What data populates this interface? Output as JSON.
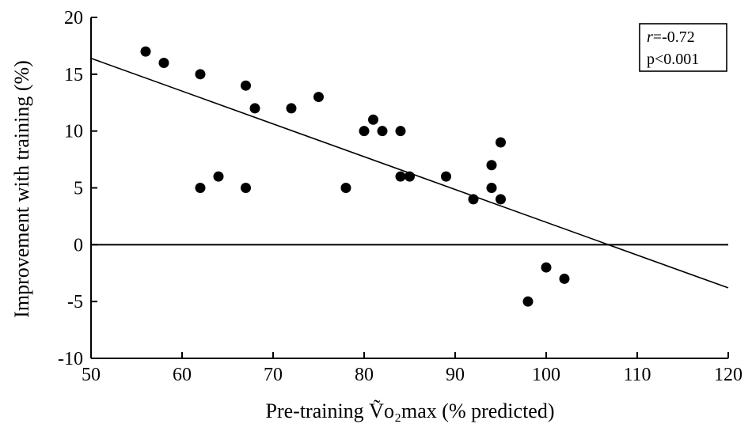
{
  "chart_data": {
    "type": "scatter",
    "xlabel": "Pre-training Ṽo₂max (% predicted)",
    "ylabel": "Improvement with training (%)",
    "xlim": [
      50,
      120
    ],
    "ylim": [
      -10,
      20
    ],
    "xticks": [
      "50",
      "60",
      "70",
      "80",
      "90",
      "100",
      "110",
      "120"
    ],
    "yticks": [
      "-10",
      "-5",
      "0",
      "5",
      "10",
      "15",
      "20"
    ],
    "grid": false,
    "annotation": {
      "r_symbol": "r",
      "r_value": "=-0.72",
      "p_text": "p<0.001",
      "position": "top-right"
    },
    "reference_line_y": 0,
    "regression_line": {
      "x_start": 50,
      "y_start": 16.4,
      "x_end": 120,
      "y_end": -3.8
    },
    "series": [
      {
        "points": [
          [
            56,
            17
          ],
          [
            58,
            16
          ],
          [
            62,
            15
          ],
          [
            62,
            5
          ],
          [
            64,
            6
          ],
          [
            67,
            14
          ],
          [
            67,
            5
          ],
          [
            68,
            12
          ],
          [
            72,
            12
          ],
          [
            75,
            13
          ],
          [
            78,
            5
          ],
          [
            80,
            10
          ],
          [
            81,
            11
          ],
          [
            82,
            10
          ],
          [
            84,
            10
          ],
          [
            84,
            6
          ],
          [
            85,
            6
          ],
          [
            89,
            6
          ],
          [
            92,
            4
          ],
          [
            94,
            7
          ],
          [
            94,
            5
          ],
          [
            95,
            9
          ],
          [
            95,
            4
          ],
          [
            98,
            -5
          ],
          [
            100,
            -2
          ],
          [
            102,
            -3
          ]
        ]
      }
    ]
  }
}
